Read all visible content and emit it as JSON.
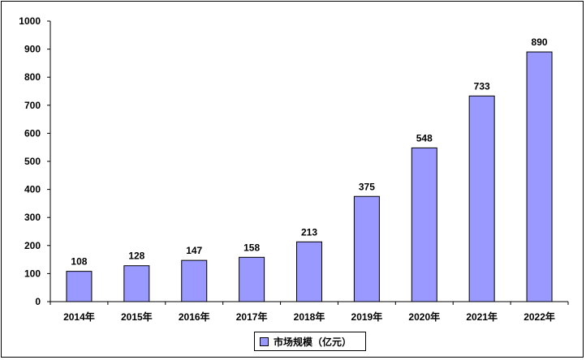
{
  "chart_data": {
    "type": "bar",
    "categories": [
      "2014年",
      "2015年",
      "2016年",
      "2017年",
      "2018年",
      "2019年",
      "2020年",
      "2021年",
      "2022年"
    ],
    "series": [
      {
        "name": "市场规模（亿元）",
        "values": [
          108,
          128,
          147,
          158,
          213,
          375,
          548,
          733,
          890
        ]
      }
    ],
    "value_labels": [
      "108",
      "128",
      "147",
      "158",
      "213",
      "375",
      "548",
      "733",
      "890"
    ],
    "yticks": [
      "0",
      "100",
      "200",
      "300",
      "400",
      "500",
      "600",
      "700",
      "800",
      "900",
      "1000"
    ],
    "ylim": [
      0,
      1000
    ],
    "title": "",
    "xlabel": "",
    "ylabel": "",
    "grid": false,
    "legend_position": "bottom",
    "bar_color": "#9999FF"
  }
}
